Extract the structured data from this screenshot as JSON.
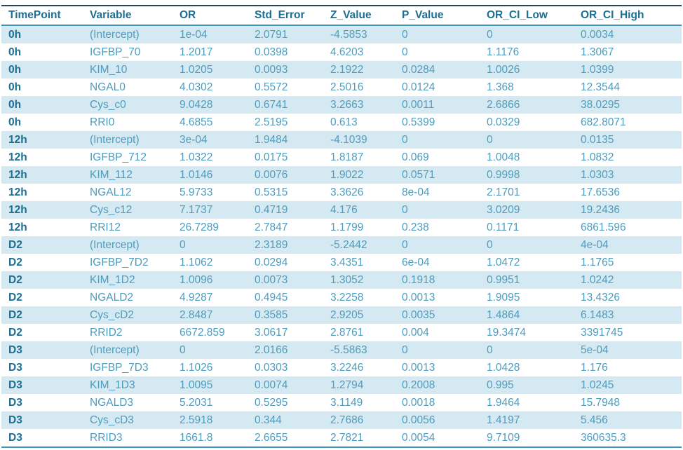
{
  "colors": {
    "header_text": "#1c6e94",
    "body_text": "#4e9cbe",
    "stripe_bg": "#d5e9f2",
    "top_border": "#24455a",
    "rule_border": "#4095ba",
    "background": "#ffffff"
  },
  "chart_data": {
    "type": "table",
    "columns": [
      "TimePoint",
      "Variable",
      "OR",
      "Std_Error",
      "Z_Value",
      "P_Value",
      "OR_CI_Low",
      "OR_CI_High"
    ],
    "rows": [
      [
        "0h",
        "(Intercept)",
        "1e-04",
        "2.0791",
        "-4.5853",
        "0",
        "0",
        "0.0034"
      ],
      [
        "0h",
        "IGFBP_70",
        "1.2017",
        "0.0398",
        "4.6203",
        "0",
        "1.1176",
        "1.3067"
      ],
      [
        "0h",
        "KIM_10",
        "1.0205",
        "0.0093",
        "2.1922",
        "0.0284",
        "1.0026",
        "1.0399"
      ],
      [
        "0h",
        "NGAL0",
        "4.0302",
        "0.5572",
        "2.5016",
        "0.0124",
        "1.368",
        "12.3544"
      ],
      [
        "0h",
        "Cys_c0",
        "9.0428",
        "0.6741",
        "3.2663",
        "0.0011",
        "2.6866",
        "38.0295"
      ],
      [
        "0h",
        "RRI0",
        "4.6855",
        "2.5195",
        "0.613",
        "0.5399",
        "0.0329",
        "682.8071"
      ],
      [
        "12h",
        "(Intercept)",
        "3e-04",
        "1.9484",
        "-4.1039",
        "0",
        "0",
        "0.0135"
      ],
      [
        "12h",
        "IGFBP_712",
        "1.0322",
        "0.0175",
        "1.8187",
        "0.069",
        "1.0048",
        "1.0832"
      ],
      [
        "12h",
        "KIM_112",
        "1.0146",
        "0.0076",
        "1.9022",
        "0.0571",
        "0.9998",
        "1.0303"
      ],
      [
        "12h",
        "NGAL12",
        "5.9733",
        "0.5315",
        "3.3626",
        "8e-04",
        "2.1701",
        "17.6536"
      ],
      [
        "12h",
        "Cys_c12",
        "7.1737",
        "0.4719",
        "4.176",
        "0",
        "3.0209",
        "19.2436"
      ],
      [
        "12h",
        "RRI12",
        "26.7289",
        "2.7847",
        "1.1799",
        "0.238",
        "0.1171",
        "6861.596"
      ],
      [
        "D2",
        "(Intercept)",
        "0",
        "2.3189",
        "-5.2442",
        "0",
        "0",
        "4e-04"
      ],
      [
        "D2",
        "IGFBP_7D2",
        "1.1062",
        "0.0294",
        "3.4351",
        "6e-04",
        "1.0472",
        "1.1765"
      ],
      [
        "D2",
        "KIM_1D2",
        "1.0096",
        "0.0073",
        "1.3052",
        "0.1918",
        "0.9951",
        "1.0242"
      ],
      [
        "D2",
        "NGALD2",
        "4.9287",
        "0.4945",
        "3.2258",
        "0.0013",
        "1.9095",
        "13.4326"
      ],
      [
        "D2",
        "Cys_cD2",
        "2.8487",
        "0.3585",
        "2.9205",
        "0.0035",
        "1.4864",
        "6.1483"
      ],
      [
        "D2",
        "RRID2",
        "6672.859",
        "3.0617",
        "2.8761",
        "0.004",
        "19.3474",
        "3391745"
      ],
      [
        "D3",
        "(Intercept)",
        "0",
        "2.0166",
        "-5.5863",
        "0",
        "0",
        "5e-04"
      ],
      [
        "D3",
        "IGFBP_7D3",
        "1.1026",
        "0.0303",
        "3.2246",
        "0.0013",
        "1.0428",
        "1.176"
      ],
      [
        "D3",
        "KIM_1D3",
        "1.0095",
        "0.0074",
        "1.2794",
        "0.2008",
        "0.995",
        "1.0245"
      ],
      [
        "D3",
        "NGALD3",
        "5.2031",
        "0.5295",
        "3.1149",
        "0.0018",
        "1.9464",
        "15.7948"
      ],
      [
        "D3",
        "Cys_cD3",
        "2.5918",
        "0.344",
        "2.7686",
        "0.0056",
        "1.4197",
        "5.456"
      ],
      [
        "D3",
        "RRID3",
        "1661.8",
        "2.6655",
        "2.7821",
        "0.0054",
        "9.7109",
        "360635.3"
      ]
    ]
  }
}
